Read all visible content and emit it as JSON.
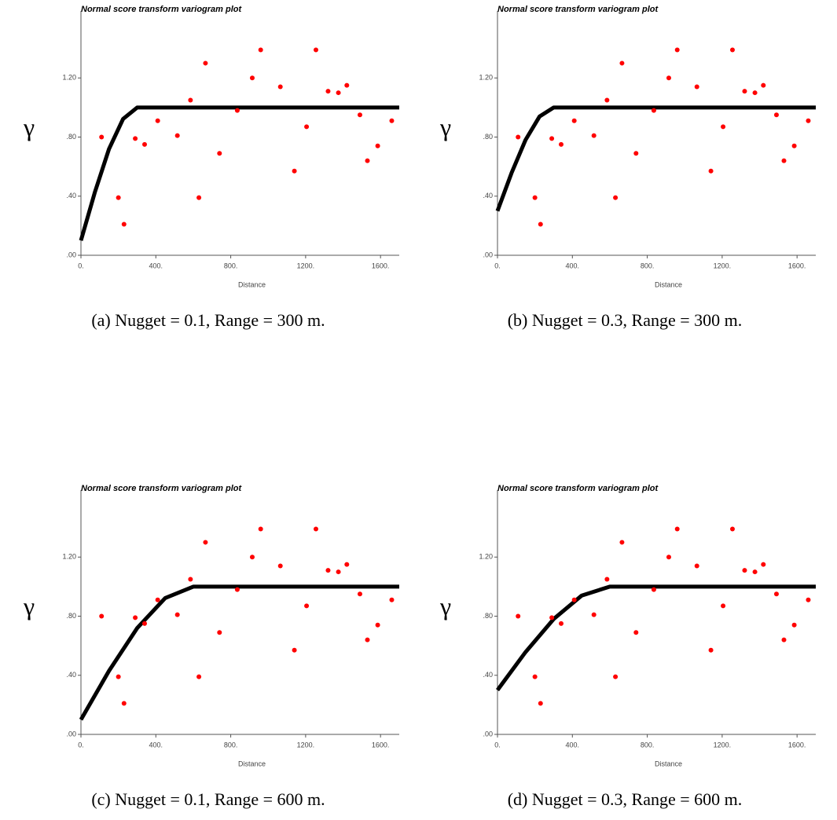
{
  "chart_data": [
    {
      "type": "scatter",
      "title": "Normal score transform variogram plot",
      "x_label": "Distance",
      "y_label": "γ",
      "caption": "(a) Nugget = 0.1, Range = 300 m.",
      "x": [
        110,
        200,
        230,
        290,
        340,
        410,
        515,
        585,
        630,
        665,
        740,
        835,
        915,
        960,
        1065,
        1140,
        1205,
        1255,
        1320,
        1375,
        1420,
        1490,
        1530,
        1585,
        1660
      ],
      "values": [
        0.8,
        0.39,
        0.21,
        0.79,
        0.75,
        0.91,
        0.81,
        1.05,
        0.39,
        1.3,
        0.69,
        0.98,
        1.2,
        1.39,
        1.14,
        0.57,
        0.87,
        1.39,
        1.11,
        1.1,
        1.15,
        0.95,
        0.64,
        0.74,
        0.91
      ],
      "color": "#ff0000",
      "line": {
        "x": [
          0,
          75,
          150,
          225,
          300,
          1700
        ],
        "values": [
          0.1,
          0.43,
          0.719,
          0.923,
          1.0,
          1.0
        ],
        "color": "#000000"
      },
      "xlim": [
        0,
        1700
      ],
      "ylim": [
        0,
        1.6
      ],
      "xticks": [
        {
          "value": 0,
          "label": "0."
        },
        {
          "value": 400,
          "label": "400."
        },
        {
          "value": 800,
          "label": "800."
        },
        {
          "value": 1200,
          "label": "1200."
        },
        {
          "value": 1600,
          "label": "1600."
        }
      ],
      "yticks": [
        {
          "value": 0,
          "label": ".00"
        },
        {
          "value": 0.4,
          "label": ".40"
        },
        {
          "value": 0.8,
          "label": ".80"
        },
        {
          "value": 1.2,
          "label": "1.20"
        }
      ]
    },
    {
      "type": "scatter",
      "title": "Normal score transform variogram plot",
      "x_label": "Distance",
      "y_label": "γ",
      "caption": "(b) Nugget = 0.3, Range = 300 m.",
      "x": [
        110,
        200,
        230,
        290,
        340,
        410,
        515,
        585,
        630,
        665,
        740,
        835,
        915,
        960,
        1065,
        1140,
        1205,
        1255,
        1320,
        1375,
        1420,
        1490,
        1530,
        1585,
        1660
      ],
      "values": [
        0.8,
        0.39,
        0.21,
        0.79,
        0.75,
        0.91,
        0.81,
        1.05,
        0.39,
        1.3,
        0.69,
        0.98,
        1.2,
        1.39,
        1.14,
        0.57,
        0.87,
        1.39,
        1.11,
        1.1,
        1.15,
        0.95,
        0.64,
        0.74,
        0.91
      ],
      "color": "#ff0000",
      "line": {
        "x": [
          0,
          75,
          150,
          225,
          300,
          1700
        ],
        "values": [
          0.3,
          0.557,
          0.781,
          0.94,
          1.0,
          1.0
        ],
        "color": "#000000"
      },
      "xlim": [
        0,
        1700
      ],
      "ylim": [
        0,
        1.6
      ],
      "xticks": [
        {
          "value": 0,
          "label": "0."
        },
        {
          "value": 400,
          "label": "400."
        },
        {
          "value": 800,
          "label": "800."
        },
        {
          "value": 1200,
          "label": "1200."
        },
        {
          "value": 1600,
          "label": "1600."
        }
      ],
      "yticks": [
        {
          "value": 0,
          "label": ".00"
        },
        {
          "value": 0.4,
          "label": ".40"
        },
        {
          "value": 0.8,
          "label": ".80"
        },
        {
          "value": 1.2,
          "label": "1.20"
        }
      ]
    },
    {
      "type": "scatter",
      "title": "Normal score transform variogram plot",
      "x_label": "Distance",
      "y_label": "γ",
      "caption": "(c) Nugget = 0.1, Range = 600 m.",
      "x": [
        110,
        200,
        230,
        290,
        340,
        410,
        515,
        585,
        630,
        665,
        740,
        835,
        915,
        960,
        1065,
        1140,
        1205,
        1255,
        1320,
        1375,
        1420,
        1490,
        1530,
        1585,
        1660
      ],
      "values": [
        0.8,
        0.39,
        0.21,
        0.79,
        0.75,
        0.91,
        0.81,
        1.05,
        0.39,
        1.3,
        0.69,
        0.98,
        1.2,
        1.39,
        1.14,
        0.57,
        0.87,
        1.39,
        1.11,
        1.1,
        1.15,
        0.95,
        0.64,
        0.74,
        0.91
      ],
      "color": "#ff0000",
      "line": {
        "x": [
          0,
          150,
          300,
          450,
          600,
          1700
        ],
        "values": [
          0.1,
          0.43,
          0.719,
          0.923,
          1.0,
          1.0
        ],
        "color": "#000000"
      },
      "xlim": [
        0,
        1700
      ],
      "ylim": [
        0,
        1.6
      ],
      "xticks": [
        {
          "value": 0,
          "label": "0."
        },
        {
          "value": 400,
          "label": "400."
        },
        {
          "value": 800,
          "label": "800."
        },
        {
          "value": 1200,
          "label": "1200."
        },
        {
          "value": 1600,
          "label": "1600."
        }
      ],
      "yticks": [
        {
          "value": 0,
          "label": ".00"
        },
        {
          "value": 0.4,
          "label": ".40"
        },
        {
          "value": 0.8,
          "label": ".80"
        },
        {
          "value": 1.2,
          "label": "1.20"
        }
      ]
    },
    {
      "type": "scatter",
      "title": "Normal score transform variogram plot",
      "x_label": "Distance",
      "y_label": "γ",
      "caption": "(d) Nugget = 0.3, Range = 600 m.",
      "x": [
        110,
        200,
        230,
        290,
        340,
        410,
        515,
        585,
        630,
        665,
        740,
        835,
        915,
        960,
        1065,
        1140,
        1205,
        1255,
        1320,
        1375,
        1420,
        1490,
        1530,
        1585,
        1660
      ],
      "values": [
        0.8,
        0.39,
        0.21,
        0.79,
        0.75,
        0.91,
        0.81,
        1.05,
        0.39,
        1.3,
        0.69,
        0.98,
        1.2,
        1.39,
        1.14,
        0.57,
        0.87,
        1.39,
        1.11,
        1.1,
        1.15,
        0.95,
        0.64,
        0.74,
        0.91
      ],
      "color": "#ff0000",
      "line": {
        "x": [
          0,
          150,
          300,
          450,
          600,
          1700
        ],
        "values": [
          0.3,
          0.557,
          0.781,
          0.94,
          1.0,
          1.0
        ],
        "color": "#000000"
      },
      "xlim": [
        0,
        1700
      ],
      "ylim": [
        0,
        1.6
      ],
      "xticks": [
        {
          "value": 0,
          "label": "0."
        },
        {
          "value": 400,
          "label": "400."
        },
        {
          "value": 800,
          "label": "800."
        },
        {
          "value": 1200,
          "label": "1200."
        },
        {
          "value": 1600,
          "label": "1600."
        }
      ],
      "yticks": [
        {
          "value": 0,
          "label": ".00"
        },
        {
          "value": 0.4,
          "label": ".40"
        },
        {
          "value": 0.8,
          "label": ".80"
        },
        {
          "value": 1.2,
          "label": "1.20"
        }
      ]
    }
  ]
}
